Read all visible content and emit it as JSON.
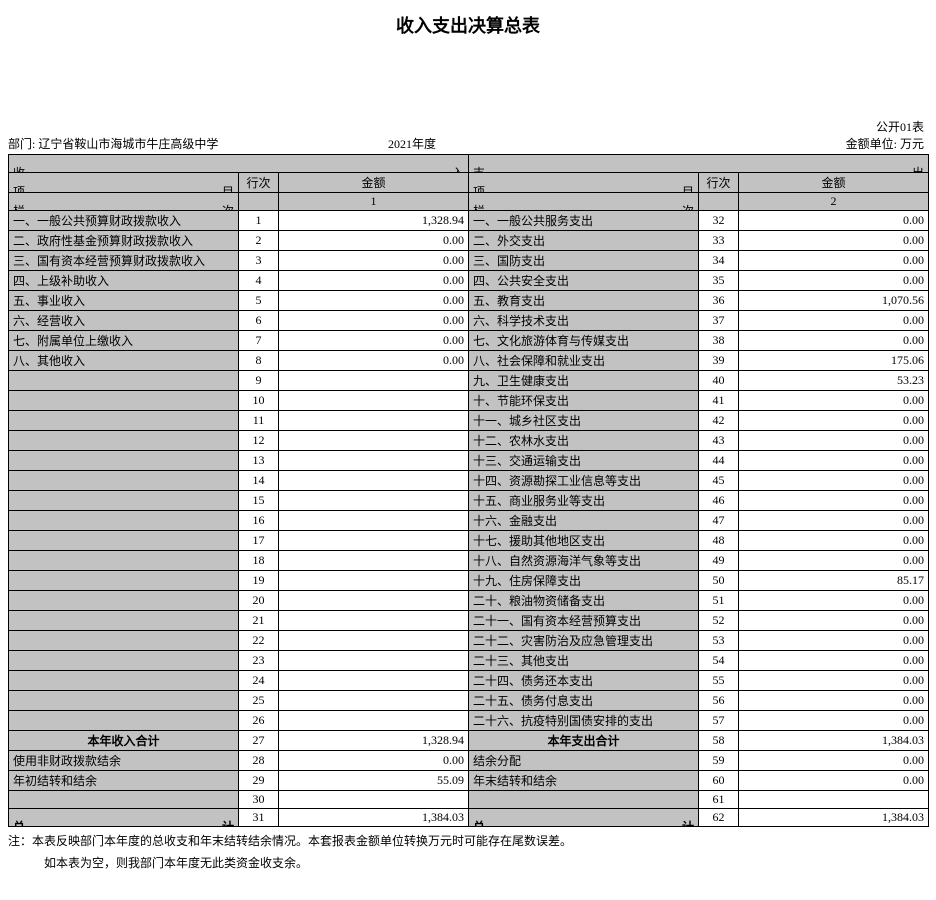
{
  "title": "收入支出决算总表",
  "form_no": "公开01表",
  "dept_label": "部门:",
  "dept_name": "辽宁省鞍山市海城市牛庄高级中学",
  "year": "2021年度",
  "unit_label": "金额单位: 万元",
  "sec_in_l": "收",
  "sec_in_r": "入",
  "sec_out_l": "支",
  "sec_out_r": "出",
  "h_item_l": "项",
  "h_item_r": "目",
  "h_row": "行次",
  "h_amt": "金额",
  "h_col_l": "栏",
  "h_col_r": "次",
  "col_num_left": "1",
  "col_num_right": "2",
  "income_rows": [
    {
      "item": "一、一般公共预算财政拨款收入",
      "row": "1",
      "amt": "1,328.94"
    },
    {
      "item": "二、政府性基金预算财政拨款收入",
      "row": "2",
      "amt": "0.00"
    },
    {
      "item": "三、国有资本经营预算财政拨款收入",
      "row": "3",
      "amt": "0.00"
    },
    {
      "item": "四、上级补助收入",
      "row": "4",
      "amt": "0.00"
    },
    {
      "item": "五、事业收入",
      "row": "5",
      "amt": "0.00"
    },
    {
      "item": "六、经营收入",
      "row": "6",
      "amt": "0.00"
    },
    {
      "item": "七、附属单位上缴收入",
      "row": "7",
      "amt": "0.00"
    },
    {
      "item": "八、其他收入",
      "row": "8",
      "amt": "0.00"
    },
    {
      "item": "",
      "row": "9",
      "amt": ""
    },
    {
      "item": "",
      "row": "10",
      "amt": ""
    },
    {
      "item": "",
      "row": "11",
      "amt": ""
    },
    {
      "item": "",
      "row": "12",
      "amt": ""
    },
    {
      "item": "",
      "row": "13",
      "amt": ""
    },
    {
      "item": "",
      "row": "14",
      "amt": ""
    },
    {
      "item": "",
      "row": "15",
      "amt": ""
    },
    {
      "item": "",
      "row": "16",
      "amt": ""
    },
    {
      "item": "",
      "row": "17",
      "amt": ""
    },
    {
      "item": "",
      "row": "18",
      "amt": ""
    },
    {
      "item": "",
      "row": "19",
      "amt": ""
    },
    {
      "item": "",
      "row": "20",
      "amt": ""
    },
    {
      "item": "",
      "row": "21",
      "amt": ""
    },
    {
      "item": "",
      "row": "22",
      "amt": ""
    },
    {
      "item": "",
      "row": "23",
      "amt": ""
    },
    {
      "item": "",
      "row": "24",
      "amt": ""
    },
    {
      "item": "",
      "row": "25",
      "amt": ""
    },
    {
      "item": "",
      "row": "26",
      "amt": ""
    }
  ],
  "expense_rows": [
    {
      "item": "一、一般公共服务支出",
      "row": "32",
      "amt": "0.00"
    },
    {
      "item": "二、外交支出",
      "row": "33",
      "amt": "0.00"
    },
    {
      "item": "三、国防支出",
      "row": "34",
      "amt": "0.00"
    },
    {
      "item": "四、公共安全支出",
      "row": "35",
      "amt": "0.00"
    },
    {
      "item": "五、教育支出",
      "row": "36",
      "amt": "1,070.56"
    },
    {
      "item": "六、科学技术支出",
      "row": "37",
      "amt": "0.00"
    },
    {
      "item": "七、文化旅游体育与传媒支出",
      "row": "38",
      "amt": "0.00"
    },
    {
      "item": "八、社会保障和就业支出",
      "row": "39",
      "amt": "175.06"
    },
    {
      "item": "九、卫生健康支出",
      "row": "40",
      "amt": "53.23"
    },
    {
      "item": "十、节能环保支出",
      "row": "41",
      "amt": "0.00"
    },
    {
      "item": "十一、城乡社区支出",
      "row": "42",
      "amt": "0.00"
    },
    {
      "item": "十二、农林水支出",
      "row": "43",
      "amt": "0.00"
    },
    {
      "item": "十三、交通运输支出",
      "row": "44",
      "amt": "0.00"
    },
    {
      "item": "十四、资源勘探工业信息等支出",
      "row": "45",
      "amt": "0.00"
    },
    {
      "item": "十五、商业服务业等支出",
      "row": "46",
      "amt": "0.00"
    },
    {
      "item": "十六、金融支出",
      "row": "47",
      "amt": "0.00"
    },
    {
      "item": "十七、援助其他地区支出",
      "row": "48",
      "amt": "0.00"
    },
    {
      "item": "十八、自然资源海洋气象等支出",
      "row": "49",
      "amt": "0.00"
    },
    {
      "item": "十九、住房保障支出",
      "row": "50",
      "amt": "85.17"
    },
    {
      "item": "二十、粮油物资储备支出",
      "row": "51",
      "amt": "0.00"
    },
    {
      "item": "二十一、国有资本经营预算支出",
      "row": "52",
      "amt": "0.00"
    },
    {
      "item": "二十二、灾害防治及应急管理支出",
      "row": "53",
      "amt": "0.00"
    },
    {
      "item": "二十三、其他支出",
      "row": "54",
      "amt": "0.00"
    },
    {
      "item": "二十四、债务还本支出",
      "row": "55",
      "amt": "0.00"
    },
    {
      "item": "二十五、债务付息支出",
      "row": "56",
      "amt": "0.00"
    },
    {
      "item": "二十六、抗疫特别国债安排的支出",
      "row": "57",
      "amt": "0.00"
    }
  ],
  "subtotal_in_label": "本年收入合计",
  "subtotal_in_row": "27",
  "subtotal_in_amt": "1,328.94",
  "subtotal_out_label": "本年支出合计",
  "subtotal_out_row": "58",
  "subtotal_out_amt": "1,384.03",
  "extra_rows": [
    {
      "l_item": "使用非财政拨款结余",
      "l_row": "28",
      "l_amt": "0.00",
      "r_item": "结余分配",
      "r_row": "59",
      "r_amt": "0.00"
    },
    {
      "l_item": "年初结转和结余",
      "l_row": "29",
      "l_amt": "55.09",
      "r_item": "年末结转和结余",
      "r_row": "60",
      "r_amt": "0.00"
    },
    {
      "l_item": "",
      "l_row": "30",
      "l_amt": "",
      "r_item": "",
      "r_row": "61",
      "r_amt": ""
    }
  ],
  "total_l": "总",
  "total_r": "计",
  "total_in_row": "31",
  "total_in_amt": "1,384.03",
  "total_out_row": "62",
  "total_out_amt": "1,384.03",
  "note1": "注：本表反映部门本年度的总收支和年末结转结余情况。本套报表金额单位转换万元时可能存在尾数误差。",
  "note2": "如本表为空，则我部门本年度无此类资金收支余。"
}
